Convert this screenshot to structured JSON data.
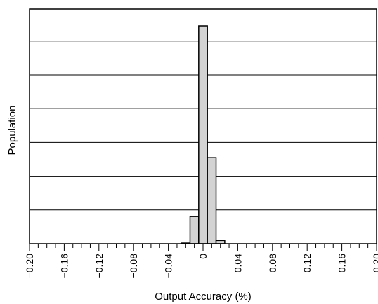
{
  "chart_data": {
    "type": "bar",
    "title": "",
    "xlabel": "Output Accuracy (%)",
    "ylabel": "Population",
    "xlim": [
      -0.2,
      0.2
    ],
    "ylim": [
      0,
      100
    ],
    "x_ticks": [
      -0.2,
      -0.16,
      -0.12,
      -0.08,
      -0.04,
      0,
      0.04,
      0.08,
      0.12,
      0.16,
      0.2
    ],
    "x_tick_labels": [
      "−0.20",
      "−0.16",
      "−0.12",
      "−0.08",
      "−0.04",
      "0",
      "0.04",
      "0.08",
      "0.12",
      "0.16",
      "0.20"
    ],
    "y_gridlines": [
      15.5,
      31,
      46.5,
      62,
      77.5,
      93
    ],
    "bin_width": 0.01,
    "bins": [
      {
        "x": -0.02,
        "value": 0.3
      },
      {
        "x": -0.01,
        "value": 12.5
      },
      {
        "x": 0.0,
        "value": 100
      },
      {
        "x": 0.01,
        "value": 39.5
      },
      {
        "x": 0.02,
        "value": 1.5
      }
    ],
    "grid": true,
    "colors": {
      "bar_fill": "#d3d3d3",
      "bar_stroke": "#000000",
      "grid": "#000000"
    }
  }
}
